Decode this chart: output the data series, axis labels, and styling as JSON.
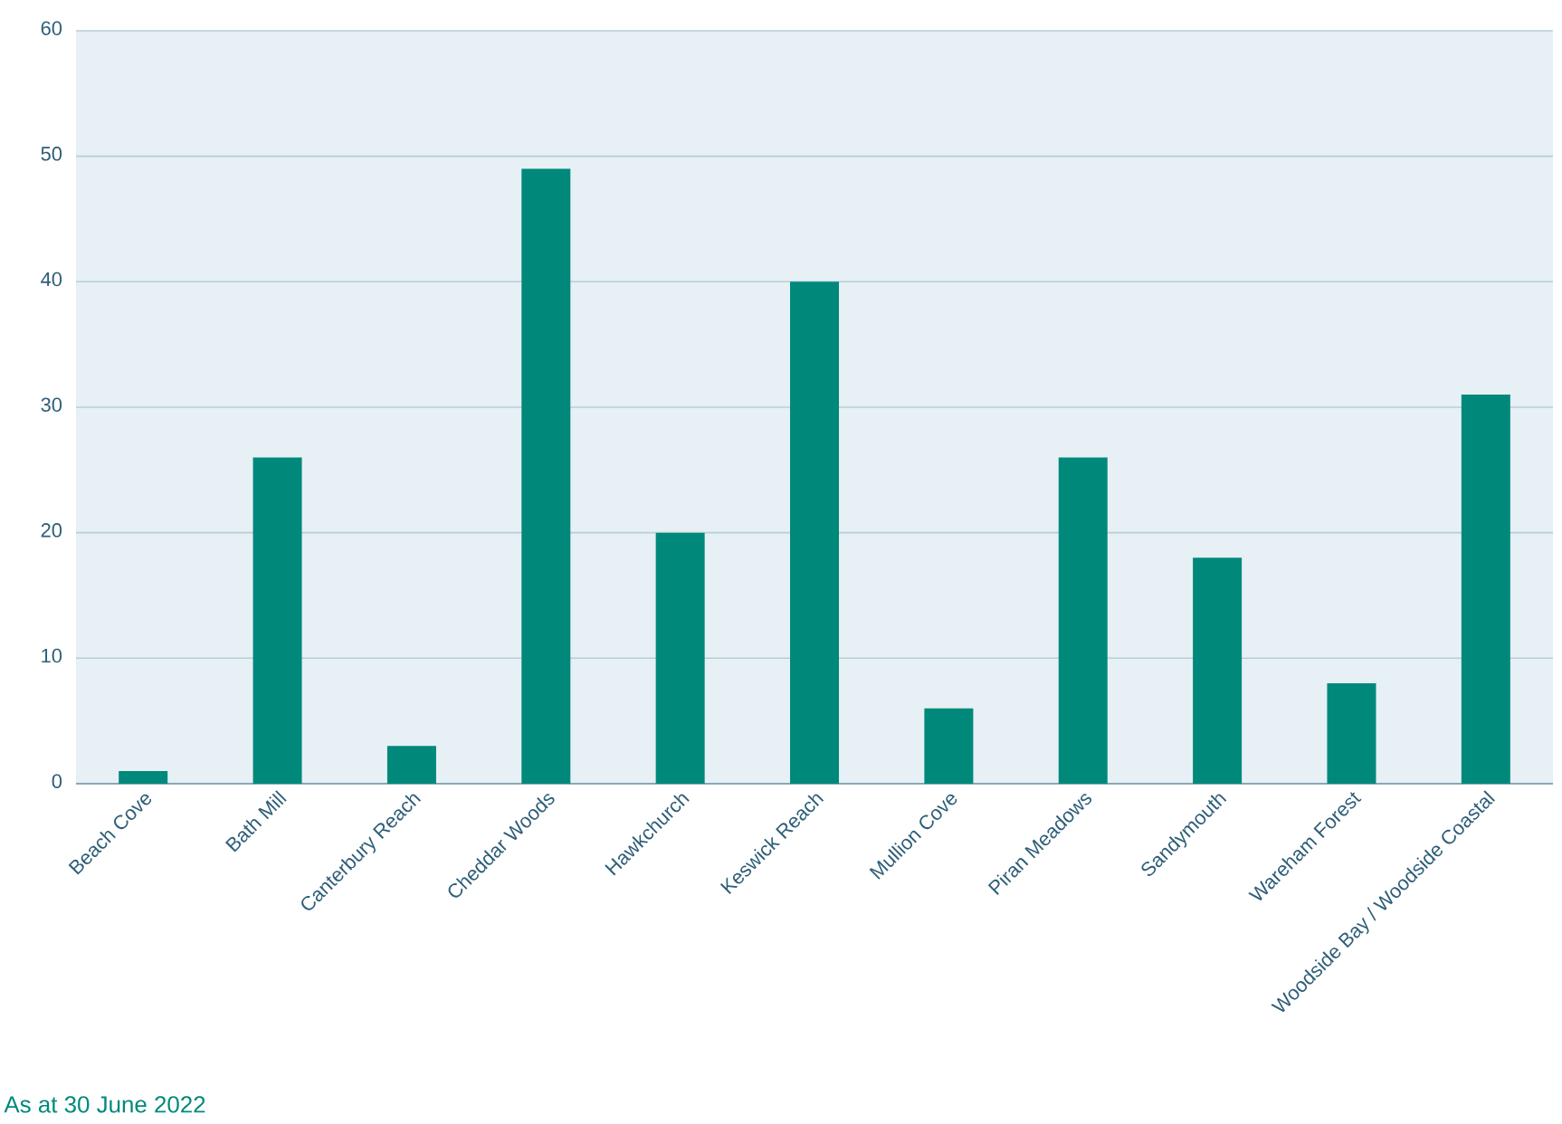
{
  "chart_data": {
    "type": "bar",
    "categories": [
      "Beach Cove",
      "Bath Mill",
      "Canterbury Reach",
      "Cheddar Woods",
      "Hawkchurch",
      "Keswick Reach",
      "Mullion Cove",
      "Piran Meadows",
      "Sandymouth",
      "Wareham Forest",
      "Woodside Bay / Woodside Coastal"
    ],
    "values": [
      1,
      26,
      3,
      49,
      20,
      40,
      6,
      26,
      18,
      8,
      31
    ],
    "color": "#00897b",
    "ylim": [
      0,
      60
    ],
    "yticks": [
      0,
      10,
      20,
      30,
      40,
      50,
      60
    ],
    "grid": "y",
    "annotations": [
      "As at 30 June 2022"
    ]
  }
}
